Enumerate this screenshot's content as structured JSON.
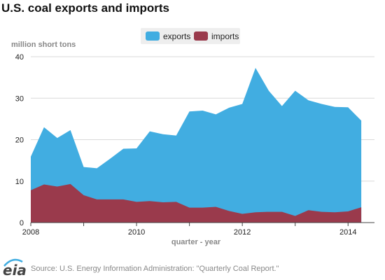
{
  "title": "U.S. coal exports and imports",
  "source_text": "Source: U.S. Energy Information Administration: \"Quarterly Coal Report.\"",
  "logo_text": "eia",
  "colors": {
    "exports": "#41ade1",
    "imports": "#9a3a4c",
    "grid": "#d9d9d9",
    "legend_bg": "#eeeeee"
  },
  "chart_data": {
    "type": "area",
    "title": "U.S. coal exports and imports",
    "xlabel": "quarter - year",
    "ylabel": "million short tons",
    "xlim": [
      2008.0,
      2014.5
    ],
    "ylim": [
      0,
      40
    ],
    "y_ticks": [
      0,
      10,
      20,
      30,
      40
    ],
    "x_ticks": [
      2008,
      2010,
      2012,
      2014
    ],
    "grid": true,
    "legend_position": "top",
    "stacked": false,
    "series": [
      {
        "name": "exports",
        "x": [
          2008.0,
          2008.25,
          2008.5,
          2008.75,
          2009.0,
          2009.25,
          2009.5,
          2009.75,
          2010.0,
          2010.25,
          2010.5,
          2010.75,
          2011.0,
          2011.25,
          2011.5,
          2011.75,
          2012.0,
          2012.25,
          2012.5,
          2012.75,
          2013.0,
          2013.25,
          2013.5,
          2013.75,
          2014.0,
          2014.25
        ],
        "values": [
          15.9,
          23.0,
          20.4,
          22.3,
          13.4,
          13.1,
          15.4,
          17.8,
          17.9,
          22.0,
          21.3,
          21.0,
          26.8,
          27.0,
          26.1,
          27.7,
          28.6,
          37.3,
          31.8,
          28.1,
          31.8,
          29.5,
          28.6,
          27.9,
          27.8,
          24.6
        ]
      },
      {
        "name": "imports",
        "x": [
          2008.0,
          2008.25,
          2008.5,
          2008.75,
          2009.0,
          2009.25,
          2009.5,
          2009.75,
          2010.0,
          2010.25,
          2010.5,
          2010.75,
          2011.0,
          2011.25,
          2011.5,
          2011.75,
          2012.0,
          2012.25,
          2012.5,
          2012.75,
          2013.0,
          2013.25,
          2013.5,
          2013.75,
          2014.0,
          2014.25
        ],
        "values": [
          7.8,
          9.2,
          8.7,
          9.3,
          6.6,
          5.6,
          5.6,
          5.6,
          5.0,
          5.2,
          4.9,
          5.0,
          3.6,
          3.6,
          3.8,
          2.8,
          2.1,
          2.5,
          2.6,
          2.6,
          1.6,
          3.0,
          2.6,
          2.5,
          2.7,
          3.7
        ]
      }
    ]
  }
}
